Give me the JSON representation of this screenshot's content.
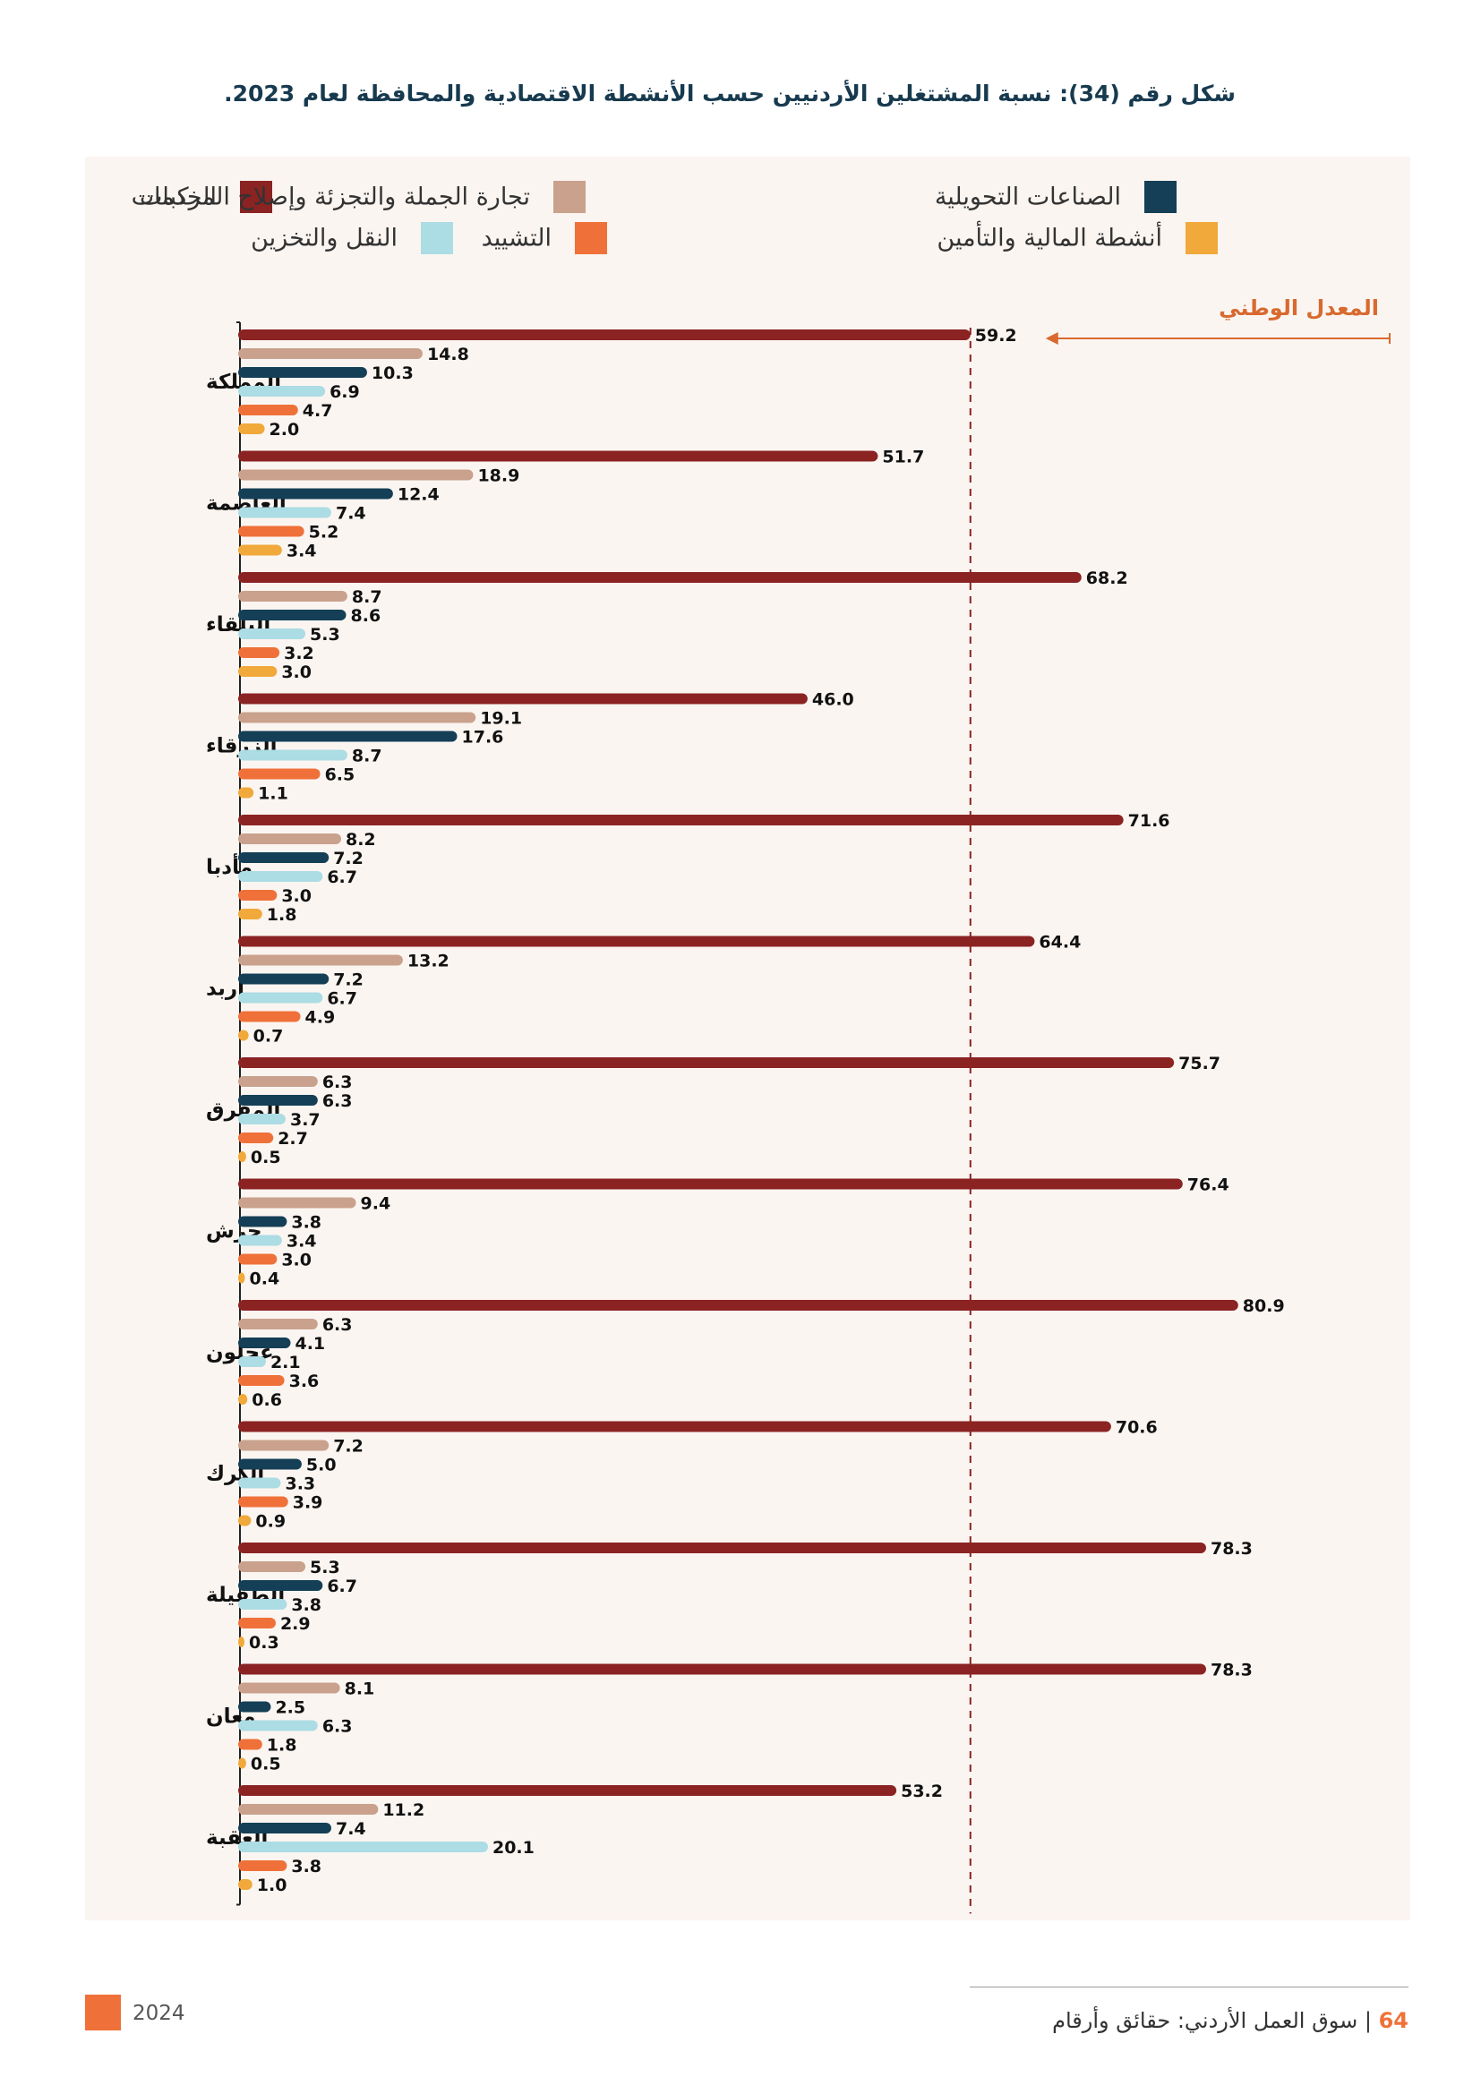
{
  "page": {
    "title": "شكل رقم (34): نسبة المشتغلين الأردنيين حسب الأنشطة الاقتصادية والمحافظة لعام 2023.",
    "footer_year": "2024",
    "footer_page": "64",
    "footer_separator": "|",
    "footer_text": "سوق العمل الأردني: حقائق وأرقام"
  },
  "colors": {
    "services": "#8b2323",
    "trade": "#c9a18c",
    "manufacturing": "#143f56",
    "transport": "#acdce4",
    "construction": "#ef7139",
    "finance": "#f0a93a",
    "accent": "#d86a2f",
    "panel": "#fbf5f1"
  },
  "legend": [
    {
      "name": "الخدمات",
      "color": "#8b2323"
    },
    {
      "name": "تجارة الجملة والتجزئة وإصلاح المركبات",
      "color": "#c9a18c"
    },
    {
      "name": "الصناعات التحويلية",
      "color": "#143f56"
    },
    {
      "name": "النقل والتخزين",
      "color": "#acdce4"
    },
    {
      "name": "التشييد",
      "color": "#ef7139"
    },
    {
      "name": "أنشطة المالية والتأمين",
      "color": "#f0a93a"
    }
  ],
  "chart_data": {
    "type": "bar",
    "orientation": "horizontal",
    "title": "شكل رقم (34): نسبة المشتغلين الأردنيين حسب الأنشطة الاقتصادية والمحافظة لعام 2023.",
    "reference_line": {
      "label": "المعدل الوطني",
      "value": 59.2
    },
    "xlim": [
      0,
      85
    ],
    "categories": [
      "المملكة",
      "العاصمة",
      "البلقاء",
      "الزرقاء",
      "مأدبا",
      "اربد",
      "المفرق",
      "جرش",
      "عجلون",
      "الكرك",
      "الطفيلة",
      "معان",
      "العقبة"
    ],
    "series": [
      {
        "name": "الخدمات",
        "values": [
          59.2,
          51.7,
          68.2,
          46.0,
          71.6,
          64.4,
          75.7,
          76.4,
          80.9,
          70.6,
          78.3,
          78.3,
          53.2
        ]
      },
      {
        "name": "تجارة الجملة والتجزئة وإصلاح المركبات",
        "values": [
          14.8,
          18.9,
          8.7,
          19.1,
          8.2,
          13.2,
          6.3,
          9.4,
          6.3,
          7.2,
          5.3,
          8.1,
          11.2
        ]
      },
      {
        "name": "الصناعات التحويلية",
        "values": [
          10.3,
          12.4,
          8.6,
          17.6,
          7.2,
          7.2,
          6.3,
          3.8,
          4.1,
          5.0,
          6.7,
          2.5,
          7.4
        ]
      },
      {
        "name": "النقل والتخزين",
        "values": [
          6.9,
          7.4,
          5.3,
          8.7,
          6.7,
          6.7,
          3.7,
          3.4,
          2.1,
          3.3,
          3.8,
          6.3,
          20.1
        ]
      },
      {
        "name": "التشييد",
        "values": [
          4.7,
          5.2,
          3.2,
          6.5,
          3.0,
          4.9,
          2.7,
          3.0,
          3.6,
          3.9,
          2.9,
          1.8,
          3.8
        ]
      },
      {
        "name": "أنشطة المالية والتأمين",
        "values": [
          2.0,
          3.4,
          3.0,
          1.1,
          1.8,
          0.7,
          0.5,
          0.4,
          0.6,
          0.9,
          0.3,
          0.5,
          1.0
        ]
      }
    ]
  }
}
